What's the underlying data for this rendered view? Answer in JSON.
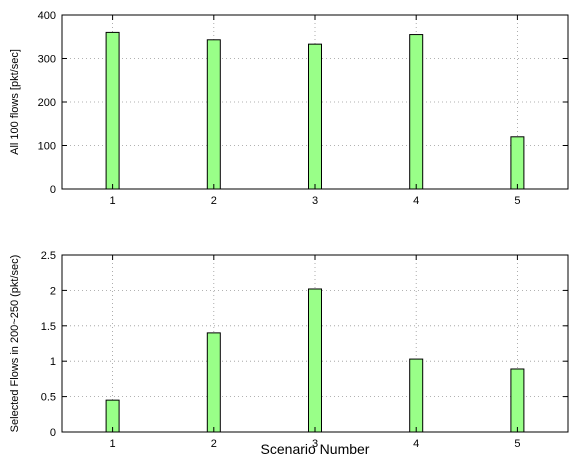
{
  "chart_data": [
    {
      "type": "bar",
      "categories": [
        "1",
        "2",
        "3",
        "4",
        "5"
      ],
      "values": [
        360,
        343,
        333,
        355,
        120
      ],
      "xlabel": "",
      "ylabel": "All 100 flows [pkt/sec]",
      "ylim": [
        0,
        400
      ],
      "yticks": [
        "0",
        "100",
        "200",
        "300",
        "400"
      ],
      "grid": true,
      "bar_color": "#99ff88"
    },
    {
      "type": "bar",
      "categories": [
        "1",
        "2",
        "3",
        "4",
        "5"
      ],
      "values": [
        0.45,
        1.4,
        2.02,
        1.03,
        0.89
      ],
      "xlabel": "Scenario Number",
      "ylabel": "Selected Flows in 200~250 (pkt/sec)",
      "ylim": [
        0,
        2.5
      ],
      "yticks": [
        "0",
        "0.5",
        "1",
        "1.5",
        "2",
        "2.5"
      ],
      "grid": true,
      "bar_color": "#99ff88"
    }
  ]
}
